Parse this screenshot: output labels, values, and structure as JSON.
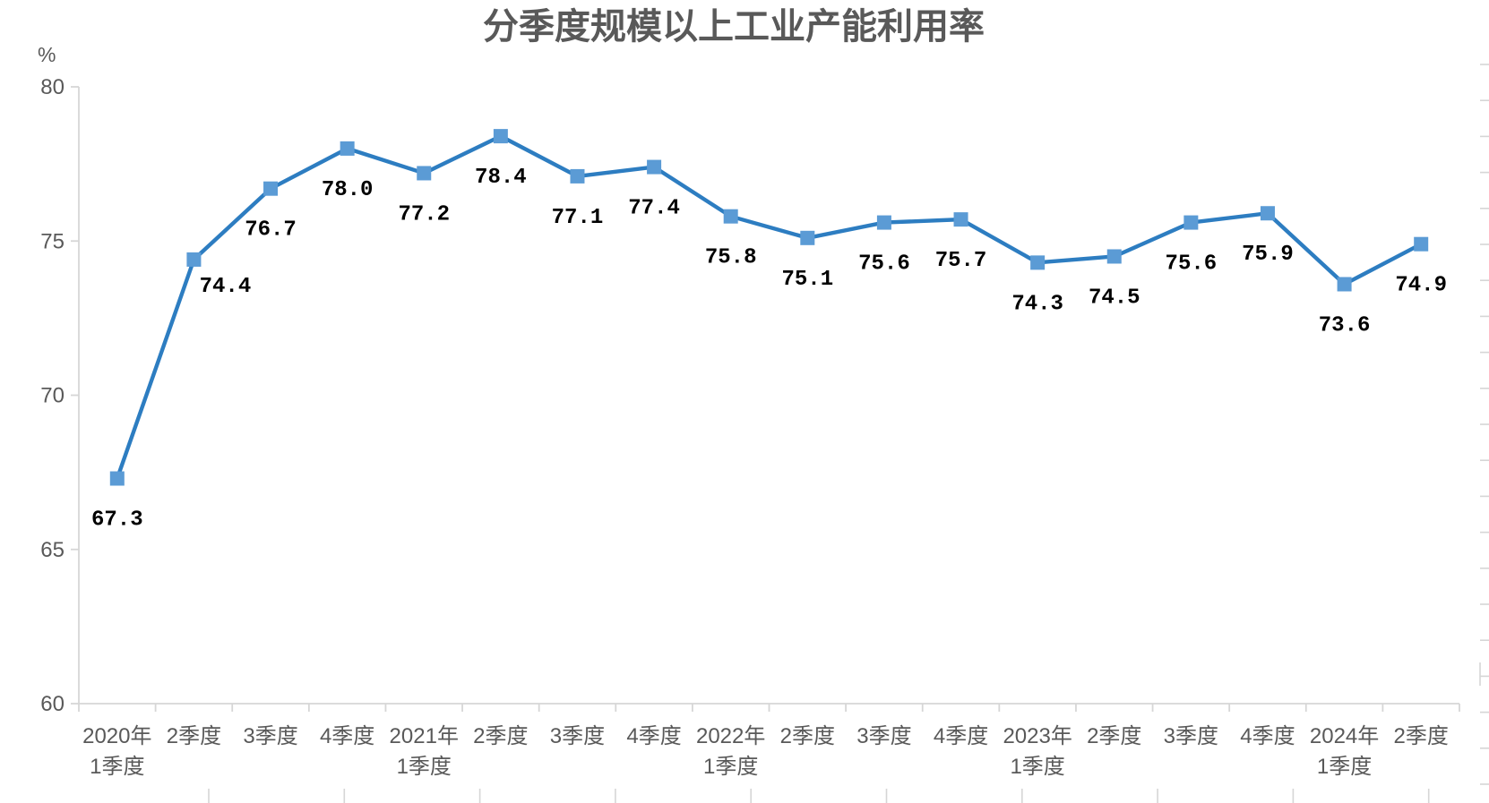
{
  "chart_data": {
    "type": "line",
    "title": "分季度规模以上工业产能利用率",
    "unit_label": "%",
    "categories": [
      [
        "2020年",
        "1季度"
      ],
      [
        "2季度"
      ],
      [
        "3季度"
      ],
      [
        "4季度"
      ],
      [
        "2021年",
        "1季度"
      ],
      [
        "2季度"
      ],
      [
        "3季度"
      ],
      [
        "4季度"
      ],
      [
        "2022年",
        "1季度"
      ],
      [
        "2季度"
      ],
      [
        "3季度"
      ],
      [
        "4季度"
      ],
      [
        "2023年",
        "1季度"
      ],
      [
        "2季度"
      ],
      [
        "3季度"
      ],
      [
        "4季度"
      ],
      [
        "2024年",
        "1季度"
      ],
      [
        "2季度"
      ]
    ],
    "values": [
      67.3,
      74.4,
      76.7,
      78.0,
      77.2,
      78.4,
      77.1,
      77.4,
      75.8,
      75.1,
      75.6,
      75.7,
      74.3,
      74.5,
      75.6,
      75.9,
      73.6,
      74.9
    ],
    "ylim": [
      60,
      80
    ],
    "yticks": [
      60,
      65,
      70,
      75,
      80
    ],
    "xlabel": "",
    "ylabel": "%",
    "grid": false,
    "legend": "none",
    "marker_shape": "square",
    "colors": {
      "line": "#2D7DC1",
      "marker": "#5B9BD5",
      "axis": "#D6D6D6",
      "tick_text": "#595959",
      "title_text": "#595959",
      "data_label_text": "#000000"
    }
  }
}
